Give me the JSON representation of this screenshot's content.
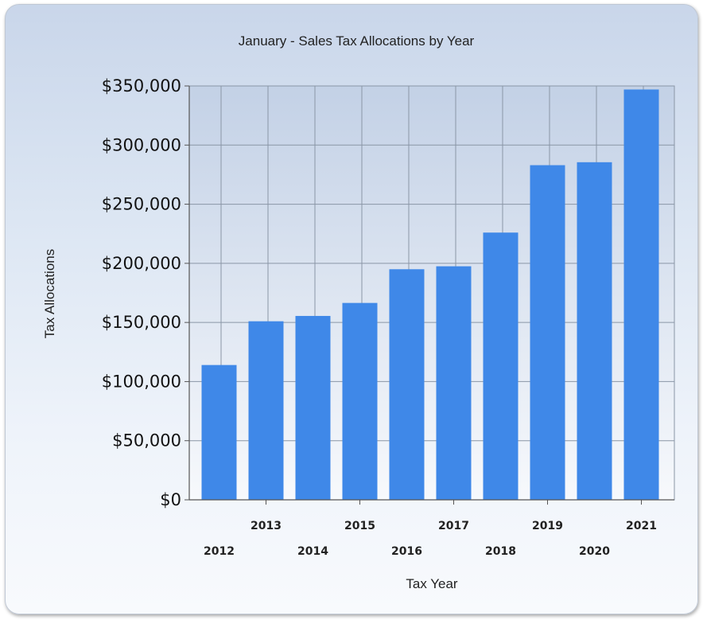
{
  "chart_data": {
    "type": "bar",
    "title": "January - Sales Tax Allocations by Year",
    "xlabel": "Tax Year",
    "ylabel": "Tax Allocations",
    "categories": [
      "2012",
      "2013",
      "2014",
      "2015",
      "2016",
      "2017",
      "2018",
      "2019",
      "2020",
      "2021"
    ],
    "values": [
      114000,
      151000,
      155500,
      166500,
      195000,
      197500,
      226000,
      283000,
      285500,
      347000
    ],
    "ylim": [
      0,
      350000
    ],
    "yticks": [
      0,
      50000,
      100000,
      150000,
      200000,
      250000,
      300000,
      350000
    ],
    "ytick_labels": [
      "$0",
      "$50,000",
      "$100,000",
      "$150,000",
      "$200,000",
      "$250,000",
      "$300,000",
      "$350,000"
    ],
    "grid": true,
    "legend": "none",
    "colors": {
      "bar": "#3f88e8",
      "grid": "#8a96a6",
      "plot_bg_top": "#c3d1e6",
      "plot_bg_bottom": "#f7f9fc"
    }
  }
}
